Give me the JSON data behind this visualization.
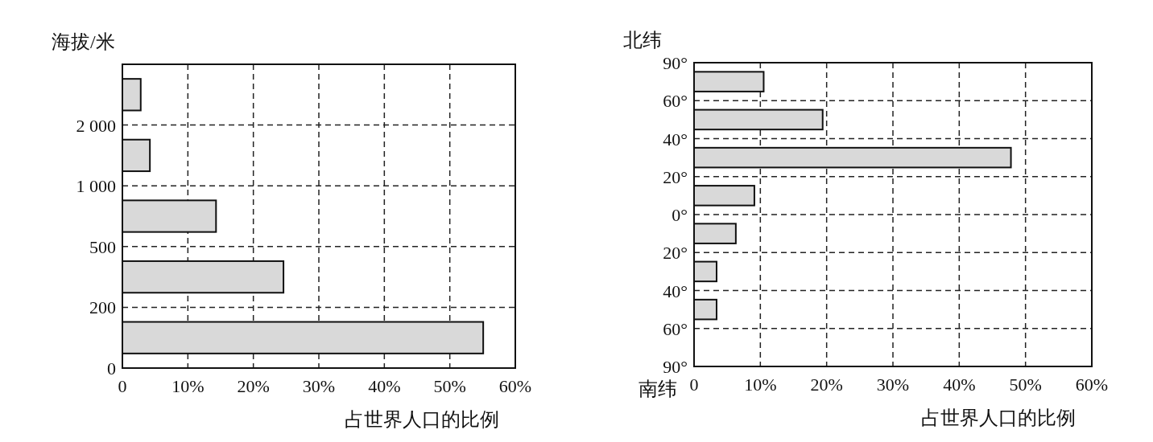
{
  "chart_data": [
    {
      "type": "bar",
      "orientation": "horizontal",
      "ylabel": "海拔/米",
      "xlabel": "占世界人口的比例",
      "annotations": [
        "0",
        "200",
        "500",
        "1 000",
        "2 000"
      ],
      "categories": [
        null,
        null,
        null,
        null,
        null
      ],
      "values": [
        2.8,
        4.2,
        14.3,
        24.6,
        55.1
      ],
      "color": "#d9d9d9",
      "xlim": [
        0,
        60
      ],
      "xticks": [
        0,
        {
          "value": 10,
          "label": "10%"
        },
        {
          "value": 20,
          "label": "20%"
        },
        {
          "value": 30,
          "label": "30%"
        },
        {
          "value": 40,
          "label": "40%"
        },
        {
          "value": 50,
          "label": "50%"
        },
        {
          "value": 60,
          "label": "60%"
        }
      ],
      "grid": true
    },
    {
      "type": "bar",
      "orientation": "horizontal",
      "ylabel": "北纬",
      "xlabel": "占世界人口的比例",
      "annotations": [
        "90°",
        "60°",
        "40°",
        "20°",
        "0°",
        "20°",
        "40°",
        "60°",
        "90°",
        "南纬"
      ],
      "categories": [
        null,
        null,
        null,
        null,
        null,
        null,
        null,
        null
      ],
      "values": [
        10.5,
        19.4,
        47.8,
        9.1,
        6.3,
        3.4,
        3.4,
        null
      ],
      "color": "#d9d9d9",
      "xlim": [
        0,
        60
      ],
      "xticks": [
        0,
        {
          "value": 10,
          "label": "10%"
        },
        {
          "value": 20,
          "label": "20%"
        },
        {
          "value": 30,
          "label": "30%"
        },
        {
          "value": 40,
          "label": "40%"
        },
        {
          "value": 50,
          "label": "50%"
        },
        {
          "value": 60,
          "label": "60%"
        }
      ],
      "grid": true
    }
  ]
}
